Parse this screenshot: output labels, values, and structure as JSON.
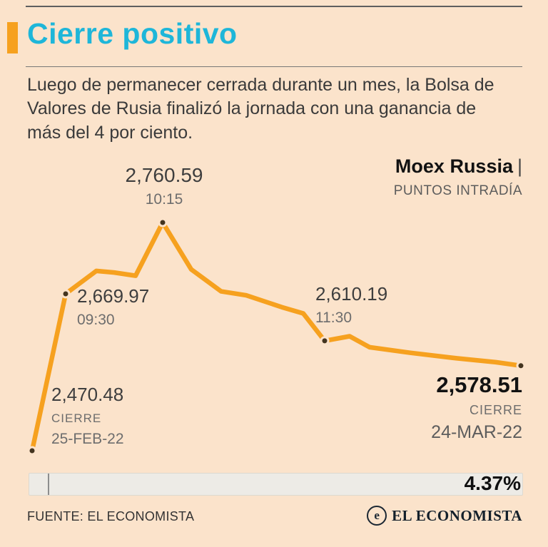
{
  "header": {
    "title": "Cierre positivo",
    "description": "Luego de permanecer cerrada durante un mes, la Bolsa de Valores de Rusia finalizó la jornada con una ganancia de más del 4 por ciento."
  },
  "chart": {
    "title": "Moex Russia",
    "title_separator": "|",
    "subtitle": "PUNTOS INTRADÍA"
  },
  "chart_data": {
    "type": "line",
    "title": "Moex Russia",
    "ylabel": "PUNTOS INTRADÍA",
    "ylim": [
      2470.48,
      2760.59
    ],
    "line_color": "#f6a11f",
    "grid": false,
    "series": [
      {
        "name": "Moex Russia intradía",
        "points": [
          [
            45,
            2470.48
          ],
          [
            92,
            2669.97
          ],
          [
            135,
            2699
          ],
          [
            160,
            2697
          ],
          [
            190,
            2693
          ],
          [
            228,
            2760.59
          ],
          [
            268,
            2701
          ],
          [
            310,
            2673
          ],
          [
            345,
            2668
          ],
          [
            395,
            2653
          ],
          [
            425,
            2645
          ],
          [
            455,
            2610.19
          ],
          [
            490,
            2616
          ],
          [
            518,
            2602
          ],
          [
            575,
            2595
          ],
          [
            640,
            2588
          ],
          [
            695,
            2583
          ],
          [
            730,
            2578.51
          ]
        ]
      }
    ],
    "markers": [
      [
        45,
        2470.48
      ],
      [
        92,
        2669.97
      ],
      [
        228,
        2760.59
      ],
      [
        455,
        2610.19
      ],
      [
        730,
        2578.51
      ]
    ],
    "annotations": [
      {
        "value": "2,470.48",
        "label": "CIERRE",
        "date": "25-FEB-22"
      },
      {
        "value": "2,669.97",
        "time": "09:30"
      },
      {
        "value": "2,760.59",
        "time": "10:15"
      },
      {
        "value": "2,610.19",
        "time": "11:30"
      },
      {
        "value": "2,578.51",
        "label": "CIERRE",
        "date": "24-MAR-22"
      }
    ],
    "change_pct": "4.37%"
  },
  "footer": {
    "source": "FUENTE: EL ECONOMISTA",
    "brand": "EL ECONOMISTA",
    "brand_icon": "e"
  }
}
